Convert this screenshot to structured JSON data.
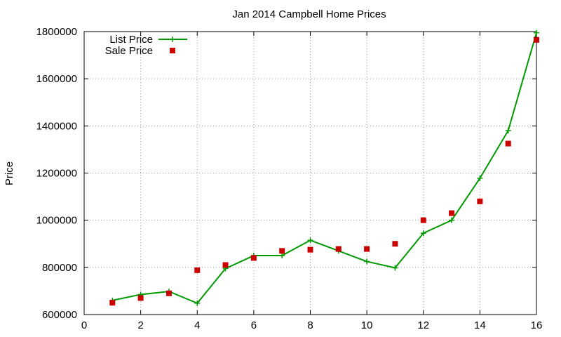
{
  "chart_data": {
    "type": "line",
    "title": "Jan 2014 Campbell Home Prices",
    "xlabel": "",
    "ylabel": "Price",
    "xlim": [
      0,
      16
    ],
    "ylim": [
      600000,
      1800000
    ],
    "x_ticks": [
      0,
      2,
      4,
      6,
      8,
      10,
      12,
      14,
      16
    ],
    "y_ticks": [
      600000,
      800000,
      1000000,
      1200000,
      1400000,
      1600000,
      1800000
    ],
    "grid": true,
    "legend_position": "top-left",
    "series": [
      {
        "name": "List Price",
        "style": "line-with-plus-markers",
        "color": "#009900",
        "x": [
          1,
          2,
          3,
          4,
          5,
          6,
          7,
          8,
          9,
          10,
          11,
          12,
          13,
          14,
          15,
          16
        ],
        "values": [
          660000,
          685000,
          698000,
          648000,
          795000,
          850000,
          850000,
          915000,
          870000,
          825000,
          798000,
          945000,
          1000000,
          1178000,
          1380000,
          1795000
        ]
      },
      {
        "name": "Sale Price",
        "style": "square-points",
        "color": "#cc0000",
        "x": [
          1,
          2,
          3,
          4,
          5,
          6,
          7,
          8,
          9,
          10,
          11,
          12,
          13,
          14,
          15,
          16
        ],
        "values": [
          650000,
          670000,
          690000,
          788000,
          810000,
          840000,
          870000,
          875000,
          878000,
          878000,
          900000,
          1000000,
          1030000,
          1080000,
          1325000,
          1765000
        ]
      }
    ]
  }
}
